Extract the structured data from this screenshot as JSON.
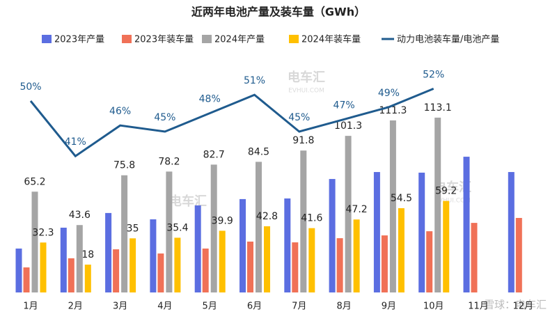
{
  "chart_data": {
    "type": "bar",
    "title": "近两年电池产量及装车量（GWh）",
    "categories": [
      "1月",
      "2月",
      "3月",
      "4月",
      "5月",
      "6月",
      "7月",
      "8月",
      "9月",
      "10月",
      "11月",
      "12月"
    ],
    "series": [
      {
        "name": "2023年产量",
        "color": "#5b6ee1",
        "values": [
          28.4,
          41.9,
          51.4,
          47.3,
          56.3,
          60.4,
          60.8,
          73.4,
          77.9,
          77.5,
          87.8,
          77.9
        ]
      },
      {
        "name": "2023年装车量",
        "color": "#f07157",
        "values": [
          16.2,
          22.1,
          27.9,
          25.2,
          28.4,
          32.9,
          32.4,
          35.1,
          36.9,
          39.6,
          45.0,
          48.2
        ]
      },
      {
        "name": "2024年产量",
        "color": "#a5a5a5",
        "values": [
          65.2,
          43.6,
          75.8,
          78.2,
          82.7,
          84.5,
          91.8,
          101.3,
          111.3,
          113.1,
          null,
          null
        ]
      },
      {
        "name": "2024年装车量",
        "color": "#ffc000",
        "values": [
          32.3,
          18,
          35,
          35.4,
          39.9,
          42.8,
          41.6,
          47.2,
          54.5,
          59.2,
          null,
          null
        ]
      },
      {
        "name": "动力电池装车量/电池产量",
        "color": "#1f5b8e",
        "type": "line",
        "axis": "y2",
        "values": [
          50,
          41,
          46,
          45,
          48,
          51,
          45,
          47,
          49,
          52,
          null,
          null
        ],
        "value_labels": [
          "50%",
          "41%",
          "46%",
          "45%",
          "48%",
          "51%",
          "45%",
          "47%",
          "49%",
          "52%",
          null,
          null
        ]
      }
    ],
    "watermarks": [
      "电车汇",
      "EVHUI.COM",
      "雪球：电车汇"
    ]
  }
}
